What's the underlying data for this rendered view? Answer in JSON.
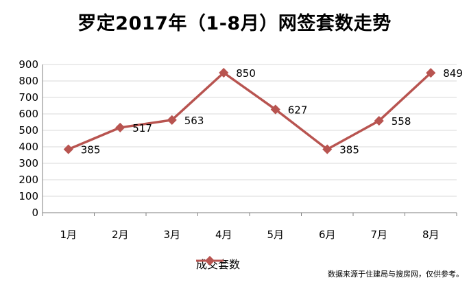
{
  "chart_data": {
    "type": "line",
    "title": "罗定2017年（1-8月）网签套数走势",
    "categories": [
      "1月",
      "2月",
      "3月",
      "4月",
      "5月",
      "6月",
      "7月",
      "8月"
    ],
    "series": [
      {
        "name": "成交套数",
        "values": [
          385,
          517,
          563,
          850,
          627,
          385,
          558,
          849
        ],
        "color": "#B85450"
      }
    ],
    "yticks": [
      0,
      100,
      200,
      300,
      400,
      500,
      600,
      700,
      800,
      900
    ],
    "ylim": [
      0,
      900
    ],
    "grid": true,
    "legend": "bottom"
  },
  "source_note": "数据来源于住建局与搜房网，仅供参考。"
}
